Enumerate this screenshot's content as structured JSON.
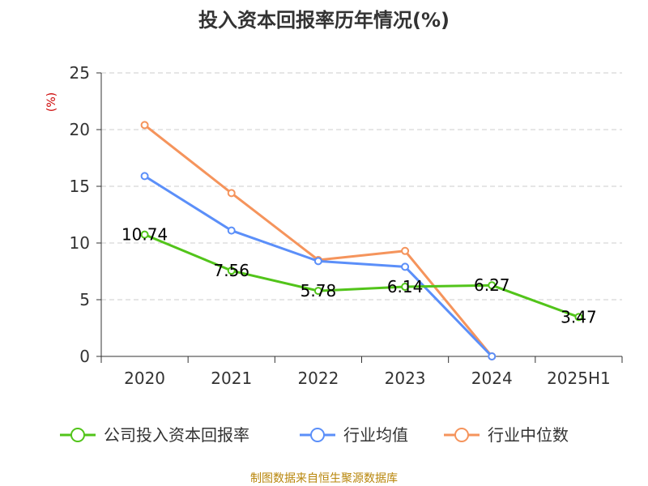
{
  "chart_data": {
    "type": "line",
    "title": "投入资本回报率历年情况(%)",
    "ylabel": "(%)",
    "xlabel": "",
    "categories": [
      "2020",
      "2021",
      "2022",
      "2023",
      "2024",
      "2025H1"
    ],
    "ylim": [
      0,
      25
    ],
    "yticks": [
      0,
      5,
      10,
      15,
      20,
      25
    ],
    "grid": true,
    "legend_position": "bottom",
    "series": [
      {
        "name": "公司投入资本回报率",
        "color": "#52c41a",
        "values": [
          10.74,
          7.56,
          5.78,
          6.14,
          6.27,
          3.47
        ],
        "labels": [
          "10.74",
          "7.56",
          "5.78",
          "6.14",
          "6.27",
          "3.47"
        ]
      },
      {
        "name": "行业均值",
        "color": "#5b8ff9",
        "values": [
          15.9,
          11.1,
          8.4,
          7.9,
          0,
          null
        ],
        "labels": []
      },
      {
        "name": "行业中位数",
        "color": "#f5945c",
        "values": [
          20.4,
          14.4,
          8.5,
          9.3,
          0,
          null
        ],
        "labels": []
      }
    ]
  },
  "source": "制图数据来自恒生聚源数据库"
}
